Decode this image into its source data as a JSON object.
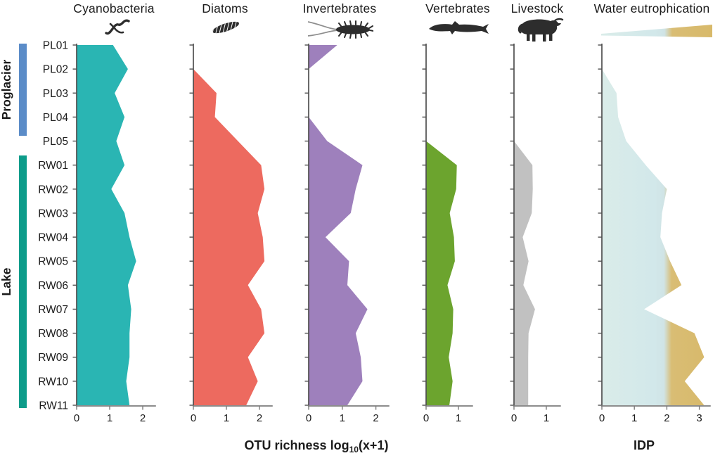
{
  "header": {
    "panels": [
      {
        "label": "Cyanobacteria",
        "icon": "cyanobacteria-filament-icon"
      },
      {
        "label": "Diatoms",
        "icon": "diatom-icon"
      },
      {
        "label": "Invertebrates",
        "icon": "invertebrate-icon"
      },
      {
        "label": "Vertebrates",
        "icon": "fish-icon"
      },
      {
        "label": "Livestock",
        "icon": "yak-icon"
      },
      {
        "label": "Water eutrophication",
        "icon": "eutrophication-gradient-wedge-icon"
      }
    ]
  },
  "groups": [
    {
      "label": "Proglacier",
      "color": "#5b8cc8",
      "samples": [
        "PL01",
        "PL02",
        "PL03",
        "PL04",
        "PL05"
      ]
    },
    {
      "label": "Lake",
      "color": "#0d9c8a",
      "samples": [
        "RW01",
        "RW02",
        "RW03",
        "RW04",
        "RW05",
        "RW06",
        "RW07",
        "RW08",
        "RW09",
        "RW10",
        "RW11"
      ]
    }
  ],
  "axis": {
    "left_label": {
      "prefix": "OTU richness log",
      "sub": "10",
      "suffix": "(x+1)"
    },
    "right_label": "IDP"
  },
  "chart_data": {
    "type": "area",
    "orientation": "horizontal-rows",
    "samples": [
      "PL01",
      "PL02",
      "PL03",
      "PL04",
      "PL05",
      "RW01",
      "RW02",
      "RW03",
      "RW04",
      "RW05",
      "RW06",
      "RW07",
      "RW08",
      "RW09",
      "RW10",
      "RW11"
    ],
    "xlabel_left": "OTU richness log10(x+1)",
    "xlabel_right": "IDP",
    "panels": [
      {
        "name": "Cyanobacteria",
        "color": "#2ab5b3",
        "xlim": [
          0,
          2.4
        ],
        "ticks": [
          0,
          1,
          2
        ],
        "values": [
          1.1,
          1.55,
          1.15,
          1.45,
          1.2,
          1.45,
          1.05,
          1.45,
          1.6,
          1.8,
          1.55,
          1.65,
          1.6,
          1.6,
          1.5,
          1.6
        ]
      },
      {
        "name": "Diatoms",
        "color": "#ed6a5f",
        "xlim": [
          0,
          2.4
        ],
        "ticks": [
          0,
          1,
          2
        ],
        "values": [
          null,
          0,
          0.7,
          0.65,
          1.35,
          2.05,
          2.15,
          1.95,
          2.1,
          2.15,
          1.65,
          2.05,
          2.15,
          1.65,
          1.95,
          1.6
        ]
      },
      {
        "name": "Invertebrates",
        "color": "#9e80bc",
        "xlim": [
          0,
          2.4
        ],
        "ticks": [
          0,
          1,
          2
        ],
        "values": [
          0.85,
          0,
          null,
          0,
          0.55,
          1.6,
          1.4,
          1.25,
          0.5,
          1.2,
          1.15,
          1.75,
          1.4,
          1.55,
          1.6,
          1.15
        ]
      },
      {
        "name": "Vertebrates",
        "color": "#6ca42e",
        "xlim": [
          0,
          1.45
        ],
        "ticks": [
          0,
          1
        ],
        "values": [
          null,
          null,
          null,
          null,
          0,
          0.95,
          0.93,
          0.73,
          0.86,
          0.89,
          0.66,
          0.84,
          0.82,
          0.7,
          0.82,
          0.72
        ]
      },
      {
        "name": "Livestock",
        "color": "#c1c1c1",
        "xlim": [
          0,
          1.45
        ],
        "ticks": [
          0,
          1
        ],
        "values": [
          null,
          null,
          null,
          null,
          0,
          0.57,
          0.58,
          0.55,
          0.27,
          0.45,
          0.29,
          0.65,
          0.45,
          0.44,
          0.44,
          0.44
        ]
      },
      {
        "name": "Water eutrophication",
        "xlim": [
          0,
          3.35
        ],
        "ticks": [
          0,
          1,
          2,
          3
        ],
        "gradient": {
          "stops": [
            [
              "0%",
              "#daece9"
            ],
            [
              "48%",
              "#d2e8ea"
            ],
            [
              "57%",
              "#d0e4e6"
            ],
            [
              "64%",
              "#d9bd74"
            ],
            [
              "100%",
              "#d8b96a"
            ]
          ]
        },
        "values": [
          null,
          0,
          0.45,
          0.5,
          0.75,
          1.35,
          2.0,
          1.85,
          1.8,
          2.1,
          2.45,
          1.3,
          2.85,
          3.15,
          2.55,
          3.15
        ]
      }
    ]
  }
}
